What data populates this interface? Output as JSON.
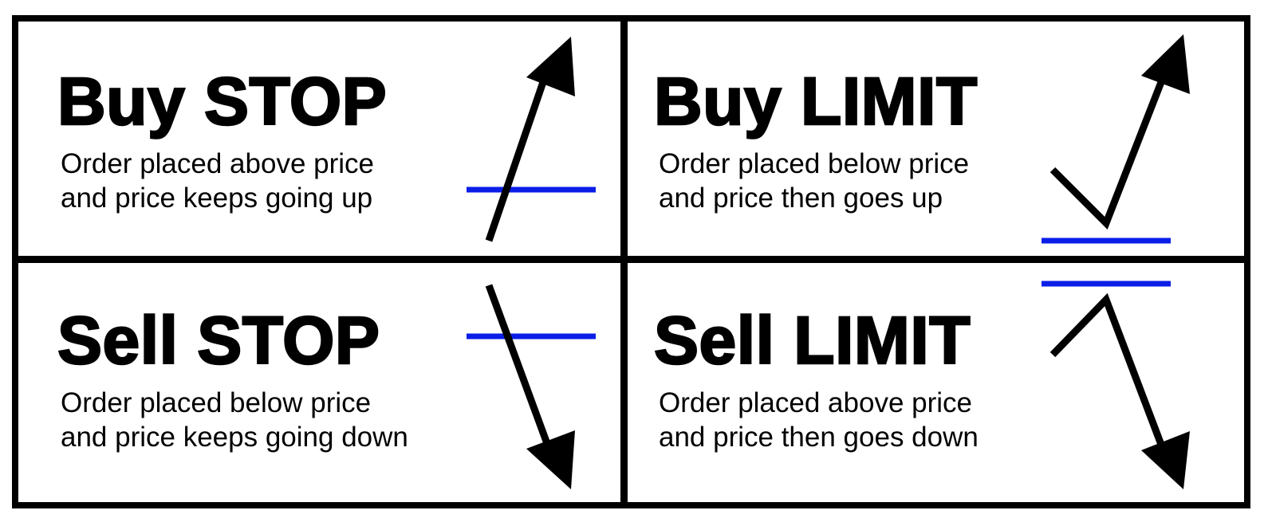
{
  "panels": {
    "buy_stop": {
      "title": "Buy STOP",
      "desc_line1": "Order placed above price",
      "desc_line2": "and price keeps going up"
    },
    "buy_limit": {
      "title": "Buy LIMIT",
      "desc_line1": "Order placed below price",
      "desc_line2": "and price then goes up"
    },
    "sell_stop": {
      "title": "Sell STOP",
      "desc_line1": "Order placed below price",
      "desc_line2": "and price keeps going down"
    },
    "sell_limit": {
      "title": "Sell LIMIT",
      "desc_line1": "Order placed above price",
      "desc_line2": "and price then goes down"
    }
  },
  "colors": {
    "order_line": "#0a1ee8",
    "price_path": "#000000",
    "border": "#000000",
    "background": "#ffffff"
  }
}
